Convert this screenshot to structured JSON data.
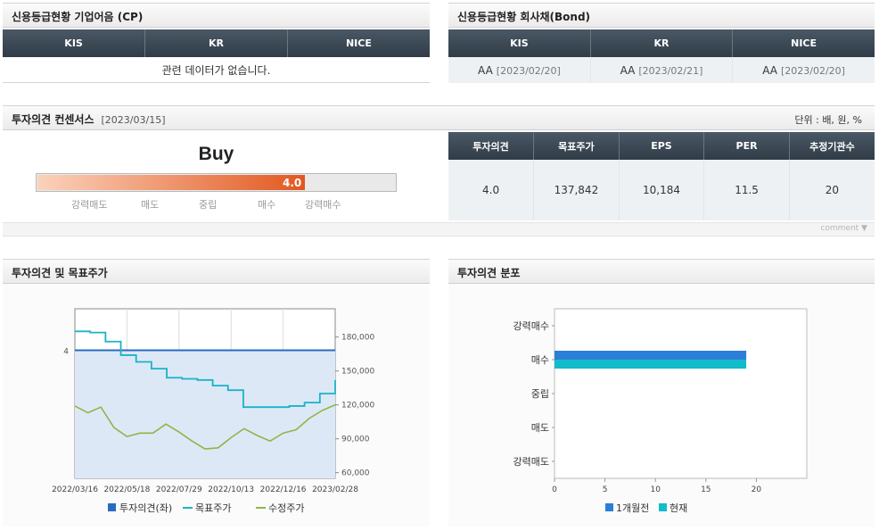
{
  "cp": {
    "title": "신용등급현황 기업어음 (CP)",
    "columns": [
      "KIS",
      "KR",
      "NICE"
    ],
    "empty_message": "관련 데이터가 없습니다."
  },
  "bond": {
    "title": "신용등급현황 회사채(Bond)",
    "columns": [
      "KIS",
      "KR",
      "NICE"
    ],
    "rows": [
      {
        "grade": "AA",
        "date": "[2023/02/20]"
      },
      {
        "grade": "AA",
        "date": "[2023/02/21]"
      },
      {
        "grade": "AA",
        "date": "[2023/02/20]"
      }
    ]
  },
  "consensus": {
    "title": "투자의견 컨센서스",
    "date": "[2023/03/15]",
    "unit": "단위 : 배, 원, %",
    "rating_label": "Buy",
    "score": "4.0",
    "score_fraction": 0.75,
    "scale_labels": [
      "강력매도",
      "매도",
      "중립",
      "매수",
      "강력매수"
    ],
    "columns": [
      "투자의견",
      "목표주가",
      "EPS",
      "PER",
      "추정기관수"
    ],
    "values": [
      "4.0",
      "137,842",
      "10,184",
      "11.5",
      "20"
    ],
    "comment_label": "comment",
    "colors": {
      "bar_start": "#fbd2bc",
      "bar_end": "#e2581f"
    }
  },
  "opinion_chart": {
    "title": "투자의견 및 목표주가",
    "chart_data": {
      "type": "line",
      "x_labels": [
        "2022/03/16",
        "2022/05/18",
        "2022/07/29",
        "2022/10/13",
        "2022/12/16",
        "2023/02/28"
      ],
      "left_axis": {
        "ticks": [
          "4"
        ]
      },
      "right_axis": {
        "ticks": [
          "180,000",
          "150,000",
          "120,000",
          "90,000",
          "60,000"
        ],
        "ylim": [
          55000,
          205000
        ]
      },
      "legend": [
        "투자의견(좌)",
        "목표주가",
        "수정주가"
      ],
      "colors": {
        "opinion": "#2a6bbf",
        "target": "#19b3c8",
        "price": "#8fb648",
        "fill": "#dde8f6"
      },
      "series": [
        {
          "name": "투자의견(좌)",
          "values": [
            4,
            4,
            4,
            4,
            4,
            4
          ]
        },
        {
          "name": "목표주가",
          "values": [
            185000,
            184000,
            176000,
            164000,
            158000,
            152000,
            144000,
            143000,
            142000,
            137000,
            133000,
            118000,
            118000,
            118000,
            119000,
            122000,
            130000,
            142000
          ]
        },
        {
          "name": "수정주가",
          "values": [
            119000,
            113000,
            118000,
            100000,
            92000,
            95000,
            95000,
            103000,
            96000,
            88000,
            81000,
            82000,
            91000,
            99000,
            93000,
            88000,
            95000,
            98000,
            108000,
            115000,
            120000
          ]
        }
      ]
    }
  },
  "distribution_chart": {
    "title": "투자의견 분포",
    "chart_data": {
      "type": "bar",
      "orientation": "horizontal",
      "categories": [
        "강력매수",
        "매수",
        "중립",
        "매도",
        "강력매도"
      ],
      "xlim": [
        0,
        25
      ],
      "x_ticks": [
        "0",
        "5",
        "10",
        "15",
        "20"
      ],
      "series": [
        {
          "name": "1개월전",
          "values": [
            0,
            19,
            0,
            0,
            0
          ],
          "color": "#2b7fd6"
        },
        {
          "name": "현재",
          "values": [
            0,
            19,
            0,
            0,
            0
          ],
          "color": "#12bccb"
        }
      ]
    }
  }
}
